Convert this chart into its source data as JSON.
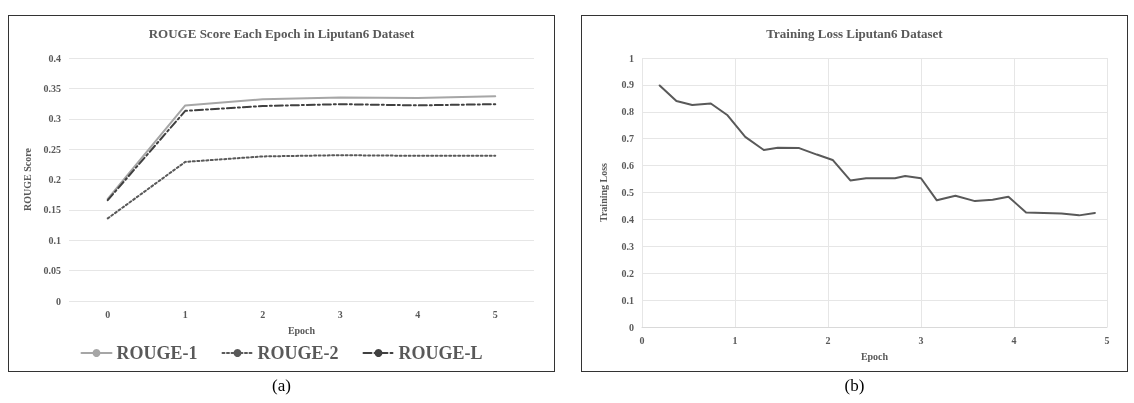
{
  "chart_data": [
    {
      "type": "line",
      "title": "ROUGE Score Each Epoch in Liputan6 Dataset",
      "xlabel": "Epoch",
      "ylabel": "ROUGE Score",
      "categories": [
        "0",
        "1",
        "2",
        "3",
        "4",
        "5"
      ],
      "ylim": [
        0,
        0.4
      ],
      "yticks": [
        0,
        0.05,
        0.1,
        0.15,
        0.2,
        0.25,
        0.3,
        0.35,
        0.4
      ],
      "grid": "y",
      "legend": "bottom",
      "marker": "none",
      "annotations": [
        "(a)"
      ],
      "series": [
        {
          "name": "ROUGE-1",
          "color": "#a6a6a6",
          "line_style": "solid",
          "values": [
            0.168,
            0.322,
            0.332,
            0.335,
            0.334,
            0.337
          ]
        },
        {
          "name": "ROUGE-2",
          "color": "#595959",
          "line_style": "dotted",
          "values": [
            0.136,
            0.229,
            0.238,
            0.24,
            0.239,
            0.239
          ]
        },
        {
          "name": "ROUGE-L",
          "color": "#404040",
          "line_style": "dashed",
          "values": [
            0.166,
            0.313,
            0.321,
            0.324,
            0.322,
            0.324
          ]
        }
      ]
    },
    {
      "type": "line",
      "title": "Training Loss Liputan6 Dataset",
      "xlabel": "Epoch",
      "ylabel": "Training Loss",
      "xlim": [
        0,
        5
      ],
      "xticks": [
        0,
        1,
        2,
        3,
        4,
        5
      ],
      "ylim": [
        0,
        1
      ],
      "yticks": [
        0,
        0.1,
        0.2,
        0.3,
        0.4,
        0.5,
        0.6,
        0.7,
        0.8,
        0.9,
        1
      ],
      "grid": true,
      "legend": false,
      "marker": "none",
      "annotations": [
        "(b)"
      ],
      "series": [
        {
          "color": "#595959",
          "line_style": "solid",
          "x": [
            0.19,
            0.37,
            0.54,
            0.74,
            0.92,
            1.11,
            1.31,
            1.46,
            1.69,
            1.88,
            2.05,
            2.24,
            2.41,
            2.72,
            2.83,
            3.0,
            3.17,
            3.37,
            3.58,
            3.77,
            3.94,
            4.13,
            4.32,
            4.51,
            4.7,
            4.87
          ],
          "values": [
            0.898,
            0.84,
            0.825,
            0.831,
            0.787,
            0.707,
            0.658,
            0.666,
            0.665,
            0.641,
            0.621,
            0.545,
            0.553,
            0.553,
            0.561,
            0.553,
            0.471,
            0.488,
            0.468,
            0.473,
            0.484,
            0.426,
            0.424,
            0.422,
            0.415,
            0.424
          ]
        }
      ]
    }
  ]
}
